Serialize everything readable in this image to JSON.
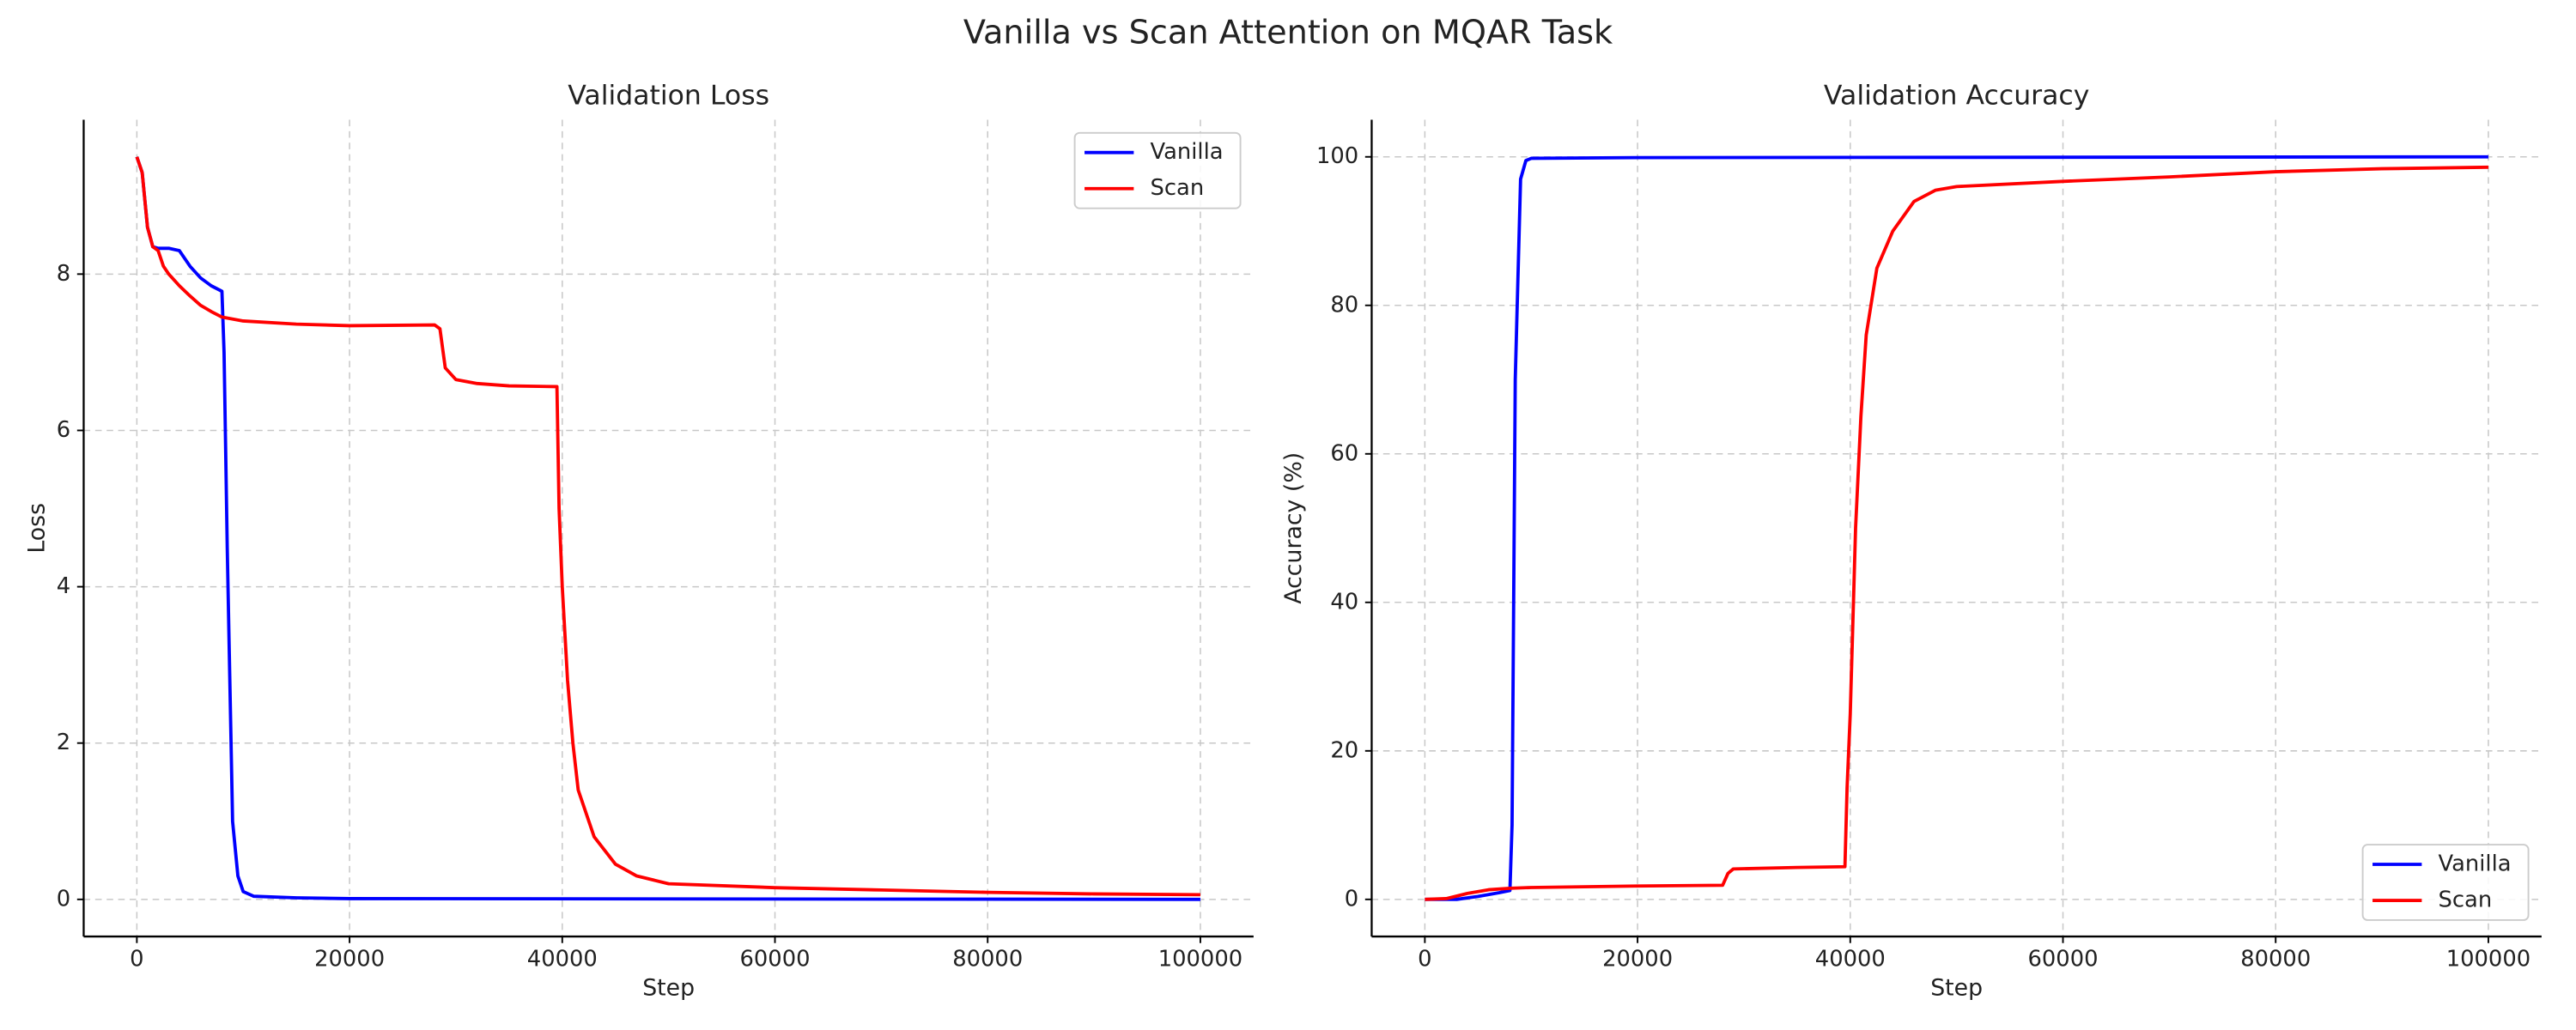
{
  "title": "Vanilla vs Scan Attention on MQAR Task",
  "chart_data": [
    {
      "type": "line",
      "title": "Validation Loss",
      "xlabel": "Step",
      "ylabel": "Loss",
      "xlim": [
        -5000,
        105000
      ],
      "xticks": [
        0,
        20000,
        40000,
        60000,
        80000,
        100000
      ],
      "ylim": [
        -0.475,
        9.975
      ],
      "yticks": [
        0,
        2,
        4,
        6,
        8
      ],
      "grid": true,
      "legend": "upper right",
      "series": [
        {
          "name": "Vanilla",
          "color": "#0000ff",
          "x": [
            0,
            500,
            1000,
            1500,
            2000,
            3000,
            4000,
            5000,
            6000,
            7000,
            8000,
            8200,
            8500,
            9000,
            9500,
            10000,
            11000,
            15000,
            20000,
            100000
          ],
          "values": [
            9.5,
            9.3,
            8.6,
            8.35,
            8.33,
            8.33,
            8.3,
            8.1,
            7.95,
            7.85,
            7.78,
            7.0,
            4.5,
            1.0,
            0.3,
            0.1,
            0.04,
            0.02,
            0.01,
            0.0
          ]
        },
        {
          "name": "Scan",
          "color": "#ff0000",
          "x": [
            0,
            500,
            1000,
            1500,
            2000,
            2500,
            3000,
            4000,
            5000,
            6000,
            7000,
            8000,
            10000,
            15000,
            20000,
            28000,
            28500,
            29000,
            30000,
            32000,
            35000,
            39500,
            39700,
            40000,
            40500,
            41000,
            41500,
            43000,
            45000,
            47000,
            50000,
            60000,
            70000,
            80000,
            90000,
            100000
          ],
          "values": [
            9.5,
            9.3,
            8.6,
            8.35,
            8.3,
            8.1,
            8.0,
            7.85,
            7.72,
            7.6,
            7.52,
            7.45,
            7.4,
            7.36,
            7.34,
            7.35,
            7.3,
            6.8,
            6.65,
            6.6,
            6.57,
            6.56,
            5.0,
            4.0,
            2.8,
            2.0,
            1.4,
            0.8,
            0.45,
            0.3,
            0.2,
            0.15,
            0.12,
            0.09,
            0.07,
            0.06
          ]
        }
      ]
    },
    {
      "type": "line",
      "title": "Validation Accuracy",
      "xlabel": "Step",
      "ylabel": "Accuracy (%)",
      "xlim": [
        -5000,
        105000
      ],
      "xticks": [
        0,
        20000,
        40000,
        60000,
        80000,
        100000
      ],
      "ylim": [
        -5,
        105
      ],
      "yticks": [
        0,
        20,
        40,
        60,
        80,
        100
      ],
      "grid": true,
      "legend": "lower right",
      "series": [
        {
          "name": "Vanilla",
          "color": "#0000ff",
          "x": [
            0,
            3000,
            5000,
            7000,
            8000,
            8200,
            8500,
            9000,
            9500,
            10000,
            20000,
            100000
          ],
          "values": [
            0,
            0,
            0.4,
            0.9,
            1.2,
            10,
            70,
            97,
            99.5,
            99.8,
            99.9,
            100
          ]
        },
        {
          "name": "Scan",
          "color": "#ff0000",
          "x": [
            0,
            2000,
            4000,
            6000,
            8000,
            10000,
            20000,
            28000,
            28500,
            29000,
            35000,
            39500,
            39700,
            40000,
            40500,
            41000,
            41500,
            42500,
            44000,
            46000,
            48000,
            50000,
            60000,
            70000,
            80000,
            90000,
            100000
          ],
          "values": [
            0,
            0.1,
            0.8,
            1.3,
            1.5,
            1.6,
            1.8,
            1.9,
            3.5,
            4.1,
            4.3,
            4.4,
            15,
            25,
            50,
            65,
            76,
            85,
            90,
            94,
            95.5,
            96,
            96.7,
            97.3,
            98,
            98.4,
            98.6
          ]
        }
      ]
    }
  ]
}
